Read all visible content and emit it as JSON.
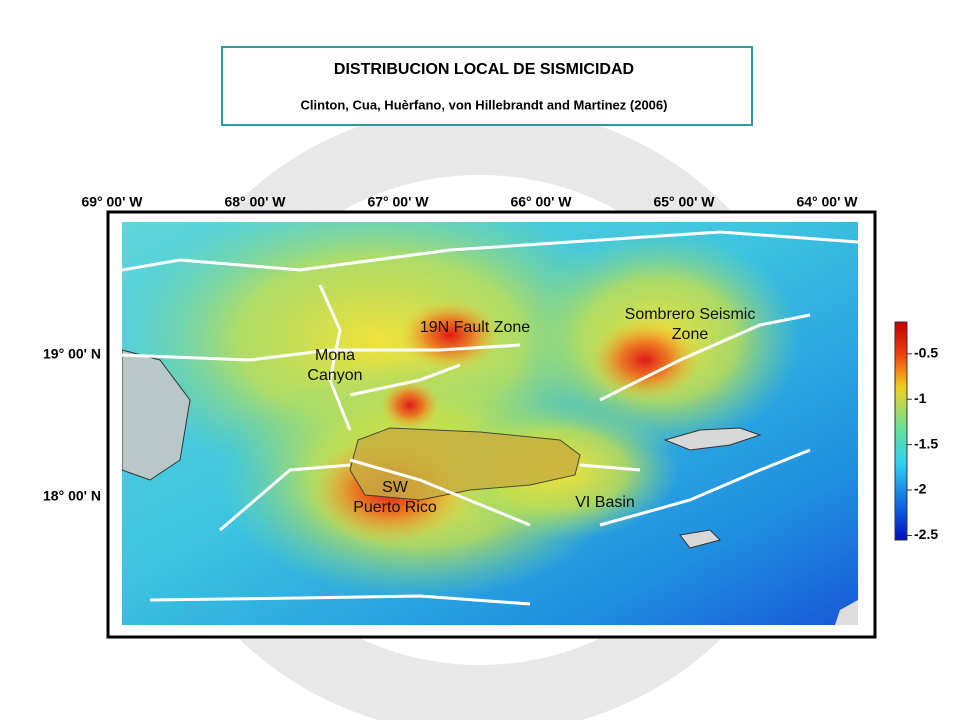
{
  "header": {
    "title": "DISTRIBUCION LOCAL DE SISMICIDAD",
    "subtitle": "Clinton, Cua, Huèrfano, von Hillebrandt and Martinez (2006)"
  },
  "map": {
    "longitudes": [
      "69° 00' W",
      "68° 00' W",
      "67° 00' W",
      "66° 00' W",
      "65° 00' W",
      "64° 00' W"
    ],
    "latitudes": [
      "19° 00' N",
      "18° 00' N"
    ],
    "labels": [
      {
        "lines": [
          "19N Fault Zone"
        ]
      },
      {
        "lines": [
          "Sombrero Seismic",
          "Zone"
        ]
      },
      {
        "lines": [
          "Mona",
          "Canyon"
        ]
      },
      {
        "lines": [
          "SW",
          "Puerto Rico"
        ]
      },
      {
        "lines": [
          "VI Basin"
        ]
      }
    ],
    "colorbar": {
      "lim": [
        -2.55,
        -0.15
      ],
      "ticks": [
        -0.5,
        -1,
        -1.5,
        -2,
        -2.5
      ]
    }
  }
}
